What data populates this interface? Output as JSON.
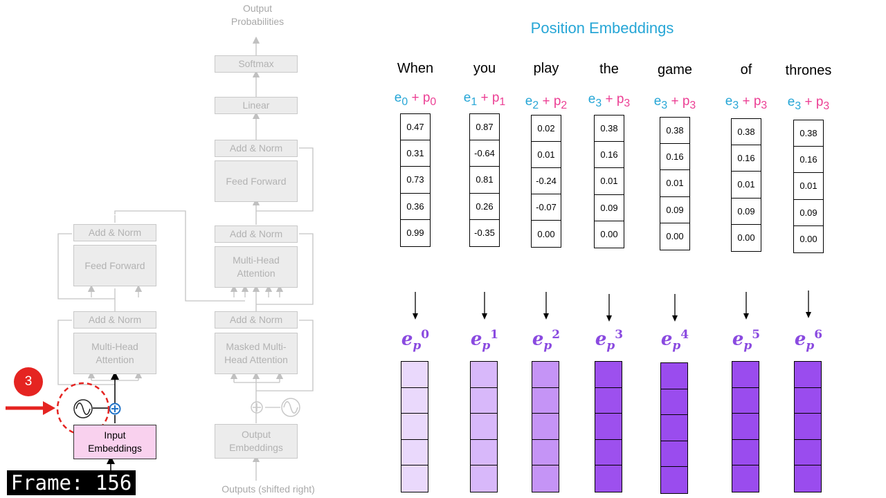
{
  "title": "Position Embeddings",
  "transformer": {
    "output_probabilities": [
      "Output",
      "Probabilities"
    ],
    "softmax": "Softmax",
    "linear": "Linear",
    "decoder_add_norm_top": "Add & Norm",
    "decoder_feed_forward": "Feed Forward",
    "decoder_add_norm_mid": "Add & Norm",
    "decoder_multi_head": [
      "Multi-Head",
      "Attention"
    ],
    "decoder_add_norm_bottom": "Add & Norm",
    "decoder_masked": [
      "Masked Multi-",
      "Head Attention"
    ],
    "output_embeddings": [
      "Output",
      "Embeddings"
    ],
    "outputs_label": "Outputs (shifted right)",
    "encoder_add_norm_top": "Add & Norm",
    "encoder_feed_forward": "Feed Forward",
    "encoder_add_norm_bottom": "Add & Norm",
    "encoder_multi_head": [
      "Multi-Head",
      "Attention"
    ],
    "input_embeddings": [
      "Input",
      "Embeddings"
    ],
    "step_badge": "3",
    "frame_label": "Frame: 156"
  },
  "tokens": [
    {
      "word": "When",
      "e_sub": "0",
      "p_sub": "0",
      "values": [
        "0.47",
        "0.31",
        "0.73",
        "0.36",
        "0.99"
      ],
      "pos": "0"
    },
    {
      "word": "you",
      "e_sub": "1",
      "p_sub": "1",
      "values": [
        "0.87",
        "-0.64",
        "0.81",
        "0.26",
        "-0.35"
      ],
      "pos": "1"
    },
    {
      "word": "play",
      "e_sub": "2",
      "p_sub": "2",
      "values": [
        "0.02",
        "0.01",
        "-0.24",
        "-0.07",
        "0.00"
      ],
      "pos": "2"
    },
    {
      "word": "the",
      "e_sub": "3",
      "p_sub": "3",
      "values": [
        "0.38",
        "0.16",
        "0.01",
        "0.09",
        "0.00"
      ],
      "pos": "3"
    },
    {
      "word": "game",
      "e_sub": "3",
      "p_sub": "3",
      "values": [
        "0.38",
        "0.16",
        "0.01",
        "0.09",
        "0.00"
      ],
      "pos": "4"
    },
    {
      "word": "of",
      "e_sub": "3",
      "p_sub": "3",
      "values": [
        "0.38",
        "0.16",
        "0.01",
        "0.09",
        "0.00"
      ],
      "pos": "5"
    },
    {
      "word": "thrones",
      "e_sub": "3",
      "p_sub": "3",
      "values": [
        "0.38",
        "0.16",
        "0.01",
        "0.09",
        "0.00"
      ],
      "pos": "6"
    }
  ],
  "colors": {
    "title": "#26a6d6",
    "e_label": "#26a6d6",
    "p_label": "#ec3f94",
    "ep_label": "#8a4ae0",
    "pos_fills": [
      "#ead9fc",
      "#d8b8fa",
      "#c594f6",
      "#9d50ee",
      "#9a4cee",
      "#9a4cee",
      "#9a4cee"
    ],
    "arrow_red": "#e52421",
    "badge_red": "#e52421",
    "input_embed_fill": "#f9d1ee"
  }
}
